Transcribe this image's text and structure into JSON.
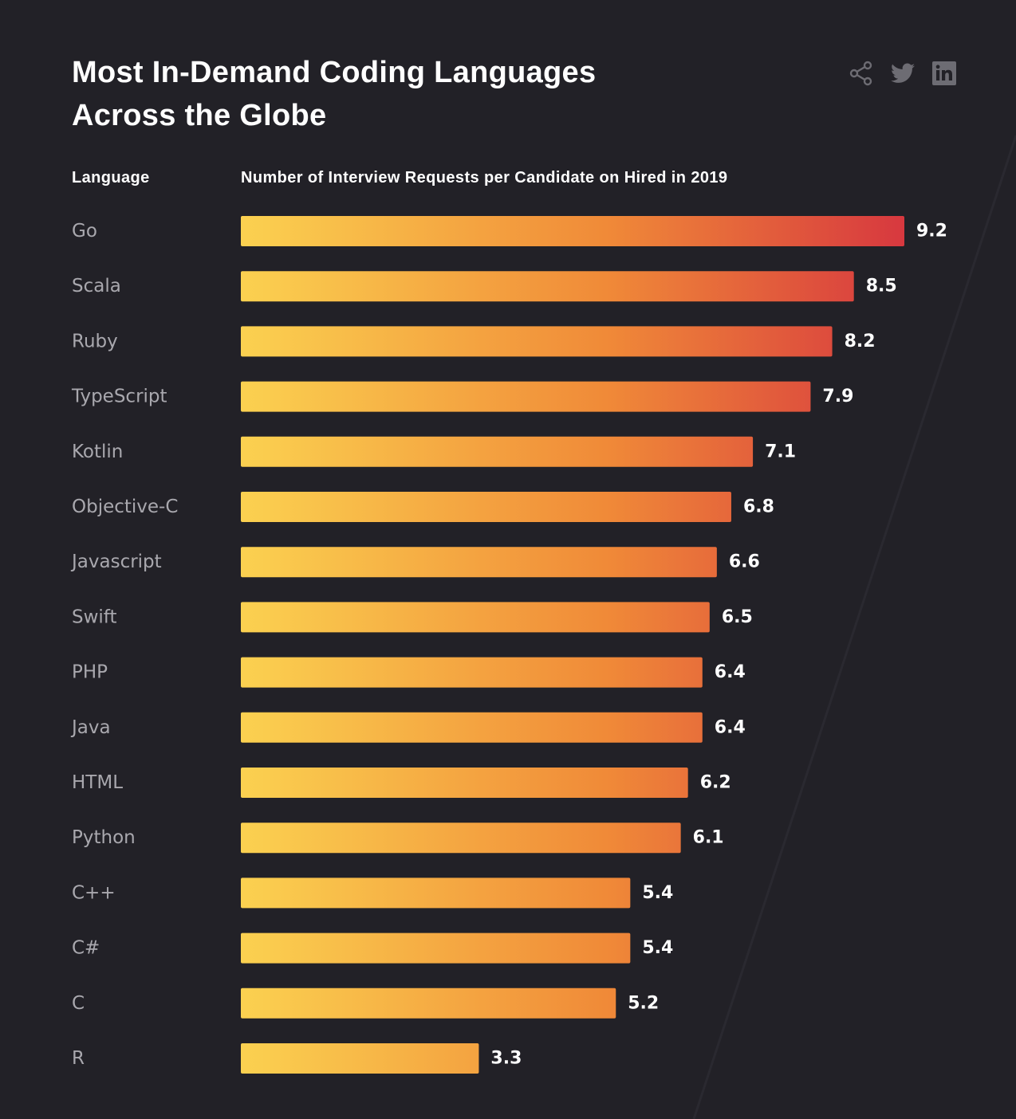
{
  "title": {
    "line1": "Most In-Demand Coding Languages",
    "line2": "Across the Globe"
  },
  "share_icons": [
    "share-icon",
    "twitter-icon",
    "linkedin-icon"
  ],
  "colors": {
    "background": "#222127",
    "bar_start": "#fbd150",
    "bar_end": "#d7383f",
    "label": "#a9a8ae",
    "value": "#ffffff",
    "icon": "#6d6c73"
  },
  "chart_data": {
    "type": "bar",
    "orientation": "horizontal",
    "title": "Most In-Demand Coding Languages Across the Globe",
    "category_header": "Language",
    "value_header": "Number of Interview Requests per Candidate on Hired in 2019",
    "categories": [
      "Go",
      "Scala",
      "Ruby",
      "TypeScript",
      "Kotlin",
      "Objective-C",
      "Javascript",
      "Swift",
      "PHP",
      "Java",
      "HTML",
      "Python",
      "C++",
      "C#",
      "C",
      "R"
    ],
    "values": [
      9.2,
      8.5,
      8.2,
      7.9,
      7.1,
      6.8,
      6.6,
      6.5,
      6.4,
      6.4,
      6.2,
      6.1,
      5.4,
      5.4,
      5.2,
      3.3
    ],
    "grid": false,
    "legend": "none"
  }
}
